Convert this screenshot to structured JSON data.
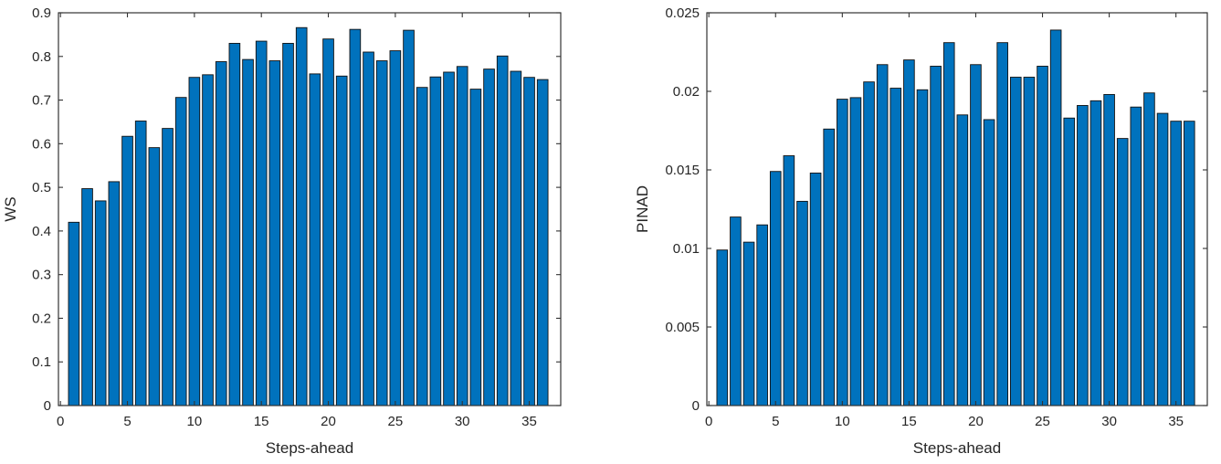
{
  "page": {
    "background": "#ffffff"
  },
  "colors": {
    "bar_fill": "#0072BD",
    "bar_edge": "#111111",
    "axis": "#333333",
    "text": "#262626"
  },
  "chart_data": [
    {
      "type": "bar",
      "title": "",
      "xlabel": "Steps-ahead",
      "ylabel": "WS",
      "x": [
        1,
        2,
        3,
        4,
        5,
        6,
        7,
        8,
        9,
        10,
        11,
        12,
        13,
        14,
        15,
        16,
        17,
        18,
        19,
        20,
        21,
        22,
        23,
        24,
        25,
        26,
        27,
        28,
        29,
        30,
        31,
        32,
        33,
        34,
        35,
        36
      ],
      "values": [
        0.42,
        0.497,
        0.469,
        0.513,
        0.617,
        0.652,
        0.591,
        0.635,
        0.706,
        0.752,
        0.758,
        0.788,
        0.83,
        0.793,
        0.835,
        0.79,
        0.83,
        0.866,
        0.76,
        0.84,
        0.755,
        0.862,
        0.81,
        0.79,
        0.813,
        0.86,
        0.729,
        0.753,
        0.764,
        0.777,
        0.725,
        0.771,
        0.801,
        0.766,
        0.752,
        0.747
      ],
      "xlim": [
        -0.15,
        37.35
      ],
      "ylim": [
        0,
        0.9
      ],
      "xticks": [
        0,
        5,
        10,
        15,
        20,
        25,
        30,
        35
      ],
      "xtick_labels": [
        "0",
        "5",
        "10",
        "15",
        "20",
        "25",
        "30",
        "35"
      ],
      "yticks": [
        0,
        0.1,
        0.2,
        0.3,
        0.4,
        0.5,
        0.6,
        0.7,
        0.8,
        0.9
      ],
      "ytick_labels": [
        "0",
        "0.1",
        "0.2",
        "0.3",
        "0.4",
        "0.5",
        "0.6",
        "0.7",
        "0.8",
        "0.9"
      ],
      "bar_width": 0.8,
      "grid": false,
      "legend": null
    },
    {
      "type": "bar",
      "title": "",
      "xlabel": "Steps-ahead",
      "ylabel": "PINAD",
      "x": [
        1,
        2,
        3,
        4,
        5,
        6,
        7,
        8,
        9,
        10,
        11,
        12,
        13,
        14,
        15,
        16,
        17,
        18,
        19,
        20,
        21,
        22,
        23,
        24,
        25,
        26,
        27,
        28,
        29,
        30,
        31,
        32,
        33,
        34,
        35,
        36
      ],
      "values": [
        0.0099,
        0.012,
        0.0104,
        0.0115,
        0.0149,
        0.0159,
        0.013,
        0.0148,
        0.0176,
        0.0195,
        0.0196,
        0.0206,
        0.0217,
        0.0202,
        0.022,
        0.0201,
        0.0216,
        0.0231,
        0.0185,
        0.0217,
        0.0182,
        0.0231,
        0.0209,
        0.0209,
        0.0216,
        0.0239,
        0.0183,
        0.0191,
        0.0194,
        0.0198,
        0.017,
        0.019,
        0.0199,
        0.0186,
        0.0181,
        0.0181
      ],
      "xlim": [
        -0.15,
        37.35
      ],
      "ylim": [
        0,
        0.025
      ],
      "xticks": [
        0,
        5,
        10,
        15,
        20,
        25,
        30,
        35
      ],
      "xtick_labels": [
        "0",
        "5",
        "10",
        "15",
        "20",
        "25",
        "30",
        "35"
      ],
      "yticks": [
        0,
        0.005,
        0.01,
        0.015,
        0.02,
        0.025
      ],
      "ytick_labels": [
        "0",
        "0.005",
        "0.01",
        "0.015",
        "0.02",
        "0.025"
      ],
      "bar_width": 0.8,
      "grid": false,
      "legend": null
    }
  ]
}
